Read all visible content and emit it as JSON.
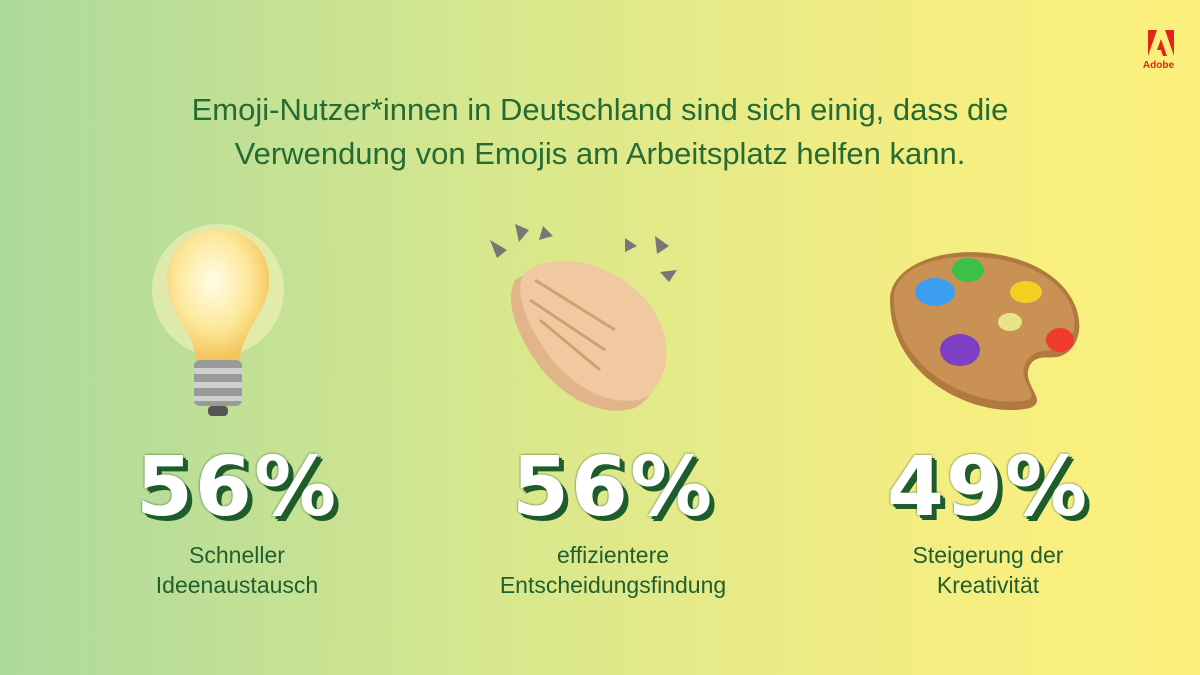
{
  "brand": "Adobe",
  "title": {
    "lines": [
      "Emoji-Nutzer*innen in Deutschland sind sich einig, dass die",
      "Verwendung von Emojis am Arbeitsplatz helfen kann."
    ]
  },
  "stats": [
    {
      "value": "56%",
      "label": [
        "Schneller",
        "Ideenaustausch"
      ]
    },
    {
      "value": "56%",
      "label": [
        "effizientere",
        "Entscheidungsfindung"
      ]
    },
    {
      "value": "49%",
      "label": [
        "Steigerung der",
        "Kreativität"
      ]
    }
  ]
}
